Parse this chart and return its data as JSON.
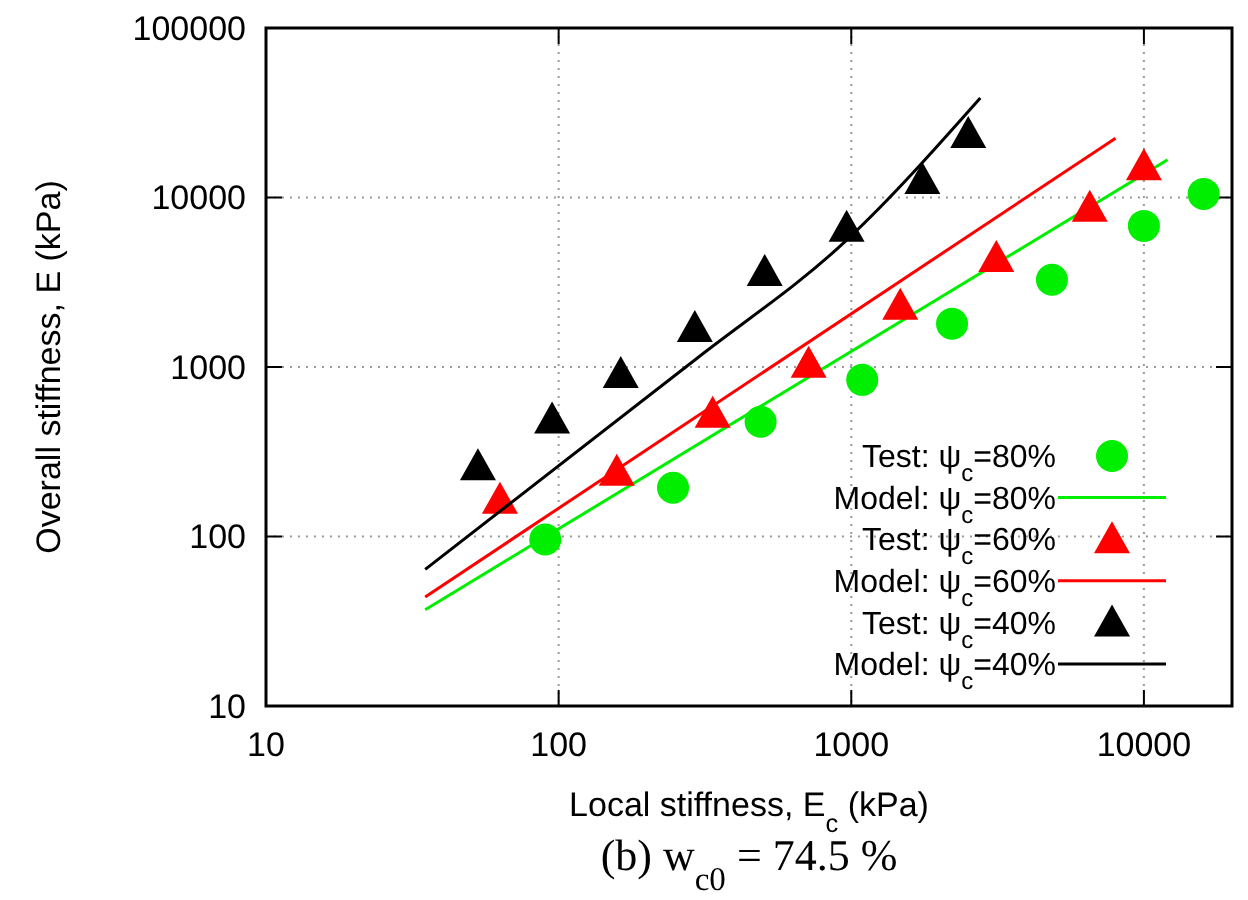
{
  "chart_data": {
    "type": "scatter",
    "xlabel": "Local stiffness, E$_{c}$ (kPa)",
    "ylabel": "Overall stiffness, E (kPa)",
    "annotations": [
      "(b) w$_{c0}$ = 74.5 %"
    ],
    "log": "xy",
    "grid": true,
    "legend": "bottom right",
    "xlim": [
      10,
      20000
    ],
    "xticks": [
      10,
      100,
      1000,
      10000
    ],
    "ylim": [
      10,
      100000
    ],
    "yticks": [
      10,
      100,
      1000,
      10000,
      100000
    ],
    "series": [
      {
        "name": "Test: ψ$_{c}$=80%",
        "marker": "circle",
        "color": "#00ee00",
        "x": [
          90,
          246,
          490,
          1090,
          2210,
          4850,
          10000,
          16000
        ],
        "values": [
          96,
          194,
          475,
          840,
          1800,
          3270,
          6800,
          10500
        ]
      },
      {
        "name": "Model: ψ$_{c}$=80%",
        "type": "line",
        "marker": "none",
        "color": "#00ee00",
        "x": [
          35,
          12050
        ],
        "values": [
          37,
          16700
        ]
      },
      {
        "name": "Test: ψ$_{c}$=60%",
        "marker": "triangle",
        "color": "#ff0000",
        "x": [
          63,
          158,
          336,
          715,
          1470,
          3130,
          6530,
          10000
        ],
        "values": [
          165,
          241,
          530,
          1045,
          2300,
          4400,
          8700,
          15300
        ]
      },
      {
        "name": "Model: ψ$_{c}$=60%",
        "type": "line",
        "marker": "none",
        "color": "#ff0000",
        "x": [
          35,
          8000
        ],
        "values": [
          44,
          22400
        ]
      },
      {
        "name": "Test: ψ$_{c}$=40%",
        "marker": "triangle",
        "color": "#000000",
        "x": [
          53,
          95,
          163,
          292,
          506,
          964,
          1750,
          2510
        ],
        "values": [
          260,
          490,
          910,
          1700,
          3640,
          6620,
          12700,
          23700
        ]
      },
      {
        "name": "Model: ψ$_{c}$=40%",
        "type": "line",
        "marker": "none",
        "color": "#000000",
        "x": [
          35,
          292,
          964,
          2760
        ],
        "values": [
          64,
          1100,
          5600,
          38600
        ]
      }
    ]
  }
}
